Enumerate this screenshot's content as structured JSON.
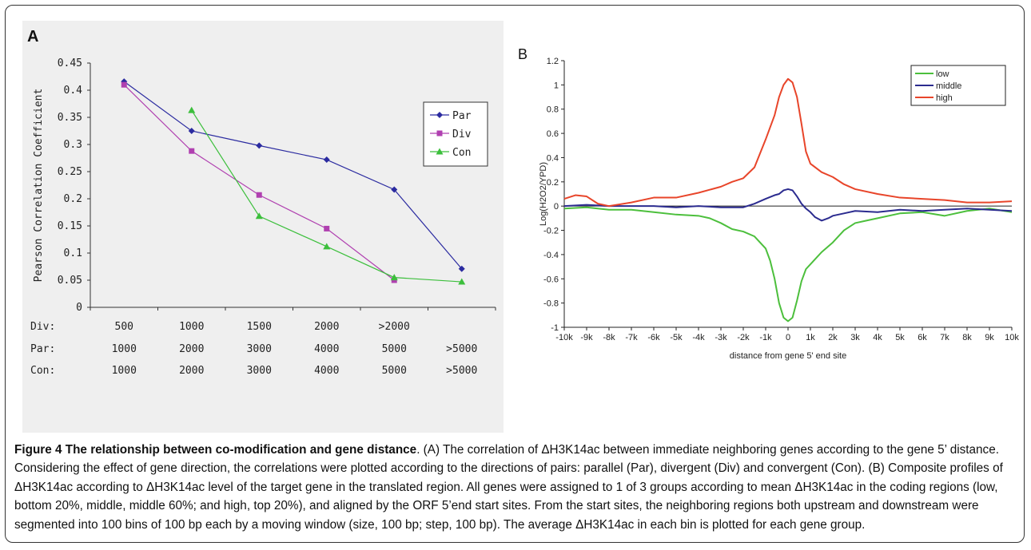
{
  "caption": {
    "figure_title": "Figure 4 The relationship between co-modification and gene distance",
    "text": ". (A) The correlation of ΔH3K14ac between immediate neighboring genes according to the gene 5’ distance. Considering the effect of gene direction, the correlations were plotted according to the directions of pairs: parallel (Par), divergent (Div) and convergent (Con). (B) Composite profiles of ΔH3K14ac according to ΔH3K14ac level of the target gene in the translated region. All genes were assigned to 1 of 3 groups according to mean ΔH3K14ac in the coding regions (low, bottom 20%, middle, middle 60%; and high, top 20%), and aligned by the ORF 5’end start sites. From the start sites, the neighboring regions both upstream and downstream were segmented into 100 bins of 100 bp each by a moving window (size, 100 bp; step, 100 bp). The average ΔH3K14ac in each bin is plotted for each gene group."
  },
  "panels": {
    "a_label": "A",
    "b_label": "B"
  },
  "chart_data": [
    {
      "type": "line",
      "panel": "A",
      "ylabel": "Pearson Correlation Coefficient",
      "ylim": [
        0,
        0.45
      ],
      "yticks": [
        "0",
        "0.05",
        "0.1",
        "0.15",
        "0.2",
        "0.25",
        "0.3",
        "0.35",
        "0.4",
        "0.45"
      ],
      "xcat_rows": [
        {
          "name": "Div:",
          "labels": [
            "500",
            "1000",
            "1500",
            "2000",
            ">2000",
            ""
          ]
        },
        {
          "name": "Par:",
          "labels": [
            "1000",
            "2000",
            "3000",
            "4000",
            "5000",
            ">5000"
          ]
        },
        {
          "name": "Con:",
          "labels": [
            "1000",
            "2000",
            "3000",
            "4000",
            "5000",
            ">5000"
          ]
        }
      ],
      "series": [
        {
          "name": "Par",
          "color": "#2b2ba0",
          "marker": "diamond",
          "values": [
            0.416,
            0.325,
            0.298,
            0.272,
            0.217,
            0.071
          ]
        },
        {
          "name": "Div",
          "color": "#b040b0",
          "marker": "square",
          "values": [
            0.41,
            0.288,
            0.207,
            0.145,
            0.05,
            null
          ]
        },
        {
          "name": "Con",
          "color": "#3cbf3c",
          "marker": "triangle",
          "x_offset": 1,
          "values": [
            0.363,
            0.168,
            0.112,
            0.055,
            0.047
          ]
        }
      ],
      "legend_position": "right",
      "grid": false
    },
    {
      "type": "line",
      "panel": "B",
      "ylabel": "Log(H2O2/YPD)",
      "xlabel": "distance from gene 5' end site",
      "ylim": [
        -1,
        1.2
      ],
      "yticks": [
        "1.2",
        "1",
        "0.8",
        "0.6",
        "0.4",
        "0.2",
        "0",
        "-0.2",
        "-0.4",
        "-0.6",
        "-0.8",
        "-1"
      ],
      "xticks": [
        "-10k",
        "-9k",
        "-8k",
        "-7k",
        "-6k",
        "-5k",
        "-4k",
        "-3k",
        "-2k",
        "-1k",
        "0",
        "1k",
        "2k",
        "3k",
        "4k",
        "5k",
        "6k",
        "7k",
        "8k",
        "9k",
        "10k"
      ],
      "xlim": [
        -10000,
        10000
      ],
      "series": [
        {
          "name": "low",
          "color": "#4cbf3c",
          "x": [
            -10000,
            -9000,
            -8000,
            -7000,
            -6000,
            -5000,
            -4000,
            -3500,
            -3000,
            -2500,
            -2000,
            -1500,
            -1000,
            -800,
            -600,
            -400,
            -200,
            0,
            200,
            400,
            600,
            800,
            1000,
            1500,
            2000,
            2500,
            3000,
            3500,
            4000,
            5000,
            6000,
            7000,
            8000,
            9000,
            10000
          ],
          "y": [
            -0.02,
            -0.01,
            -0.03,
            -0.03,
            -0.05,
            -0.07,
            -0.08,
            -0.1,
            -0.14,
            -0.19,
            -0.21,
            -0.25,
            -0.35,
            -0.45,
            -0.6,
            -0.8,
            -0.92,
            -0.95,
            -0.92,
            -0.78,
            -0.62,
            -0.52,
            -0.48,
            -0.38,
            -0.3,
            -0.2,
            -0.14,
            -0.12,
            -0.1,
            -0.06,
            -0.05,
            -0.08,
            -0.04,
            -0.02,
            -0.05
          ]
        },
        {
          "name": "middle",
          "color": "#2b2b8f",
          "x": [
            -10000,
            -9000,
            -8000,
            -7000,
            -6000,
            -5000,
            -4000,
            -3000,
            -2000,
            -1500,
            -1000,
            -600,
            -400,
            -200,
            0,
            200,
            400,
            600,
            800,
            1000,
            1200,
            1500,
            1800,
            2000,
            2500,
            3000,
            4000,
            5000,
            6000,
            7000,
            8000,
            9000,
            10000
          ],
          "y": [
            0.0,
            0.01,
            0.0,
            0.0,
            0.0,
            -0.01,
            0.0,
            -0.01,
            -0.01,
            0.02,
            0.06,
            0.09,
            0.1,
            0.13,
            0.14,
            0.13,
            0.08,
            0.02,
            -0.02,
            -0.05,
            -0.09,
            -0.12,
            -0.1,
            -0.08,
            -0.06,
            -0.04,
            -0.05,
            -0.03,
            -0.04,
            -0.03,
            -0.02,
            -0.03,
            -0.04
          ]
        },
        {
          "name": "high",
          "color": "#e8452a",
          "x": [
            -10000,
            -9500,
            -9000,
            -8500,
            -8000,
            -7000,
            -6000,
            -5000,
            -4000,
            -3000,
            -2500,
            -2000,
            -1500,
            -1000,
            -600,
            -400,
            -200,
            0,
            200,
            400,
            600,
            800,
            1000,
            1500,
            2000,
            2500,
            3000,
            4000,
            5000,
            6000,
            7000,
            8000,
            9000,
            10000
          ],
          "y": [
            0.06,
            0.09,
            0.08,
            0.02,
            0.0,
            0.03,
            0.07,
            0.07,
            0.11,
            0.16,
            0.2,
            0.23,
            0.32,
            0.55,
            0.75,
            0.9,
            1.0,
            1.05,
            1.02,
            0.9,
            0.68,
            0.45,
            0.35,
            0.28,
            0.24,
            0.18,
            0.14,
            0.1,
            0.07,
            0.06,
            0.05,
            0.03,
            0.03,
            0.04
          ]
        }
      ],
      "legend_position": "top-right",
      "grid": false
    }
  ]
}
